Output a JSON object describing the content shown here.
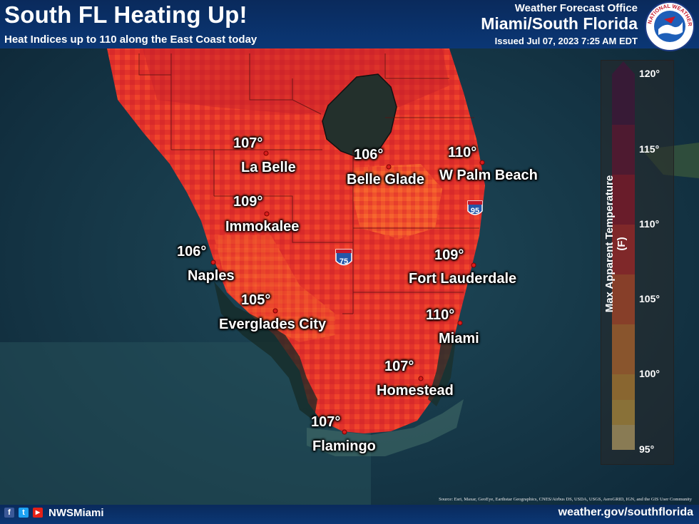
{
  "header": {
    "title": "South FL Heating Up!",
    "subtitle": "Heat Indices up to 110 along the East Coast today",
    "office_label": "Weather Forecast Office",
    "office_name": "Miami/South Florida",
    "issued": "Issued Jul 07, 2023 7:25 AM EDT",
    "logo_text": "NATIONAL WEATHER SERVICE"
  },
  "cities": [
    {
      "name": "La Belle",
      "temp": "107°"
    },
    {
      "name": "Belle Glade",
      "temp": "106°"
    },
    {
      "name": "W Palm Beach",
      "temp": "110°"
    },
    {
      "name": "Immokalee",
      "temp": "109°"
    },
    {
      "name": "Naples",
      "temp": "106°"
    },
    {
      "name": "Fort Lauderdale",
      "temp": "109°"
    },
    {
      "name": "Everglades City",
      "temp": "105°"
    },
    {
      "name": "Miami",
      "temp": "110°"
    },
    {
      "name": "Homestead",
      "temp": "107°"
    },
    {
      "name": "Flamingo",
      "temp": "107°"
    }
  ],
  "highways": [
    "95",
    "75"
  ],
  "legend": {
    "title": "Max Apparent Temperature (F)",
    "ticks": [
      "120°",
      "115°",
      "110°",
      "105°",
      "100°",
      "95°"
    ],
    "colors": [
      "#ffe08a",
      "#ffc94d",
      "#ffb13b",
      "#ff8c33",
      "#fb5b2a",
      "#e8282b",
      "#b80f2d",
      "#7d0a3a",
      "#4a0a47"
    ]
  },
  "footer": {
    "social": [
      "f",
      "t",
      "▶"
    ],
    "handle": "NWSMiami",
    "website": "weather.gov/southflorida",
    "source": "Source: Esri, Maxar, GeoEye, Earthstar Geographics, CNES/Airbus DS, USDA, USGS, AeroGRID, IGN, and the GIS User Community"
  }
}
